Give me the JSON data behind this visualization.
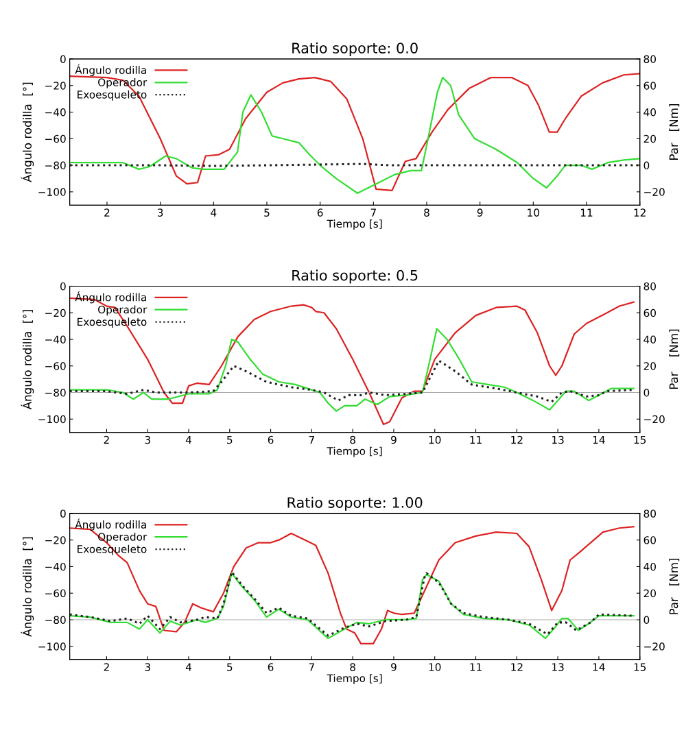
{
  "chart_data": [
    {
      "type": "line",
      "title": "Ratio soporte: 0.0",
      "xlabel": "Tiempo [s]",
      "ylabel": "Ángulo rodilla  [°]",
      "y2label": "Par   [Nm]",
      "xlim": [
        1.3,
        12
      ],
      "xticks": [
        2,
        3,
        4,
        5,
        6,
        7,
        8,
        9,
        10,
        11,
        12
      ],
      "ylim": [
        -110,
        0
      ],
      "yticks": [
        -100,
        -80,
        -60,
        -40,
        -20,
        0
      ],
      "y2lim": [
        -30,
        80
      ],
      "y2ticks": [
        -20,
        0,
        20,
        40,
        60,
        80
      ],
      "legend": "top left",
      "grid": false,
      "series": [
        {
          "name": "Ángulo rodilla",
          "color": "#dd2222",
          "line_style": "solid",
          "x": [
            1.3,
            2,
            2.3,
            2.6,
            3,
            3.3,
            3.5,
            3.7,
            3.85,
            4.1,
            4.3,
            4.6,
            5,
            5.3,
            5.6,
            5.9,
            6.2,
            6.5,
            6.8,
            7.05,
            7.35,
            7.6,
            7.8,
            8.1,
            8.4,
            8.8,
            9.2,
            9.6,
            9.9,
            10.1,
            10.3,
            10.45,
            10.6,
            10.9,
            11.3,
            11.7,
            12
          ],
          "values": [
            -13,
            -14,
            -16,
            -28,
            -60,
            -88,
            -94,
            -93,
            -73,
            -72,
            -68,
            -45,
            -25,
            -18,
            -15,
            -14,
            -17,
            -30,
            -60,
            -98,
            -99,
            -77,
            -75,
            -55,
            -38,
            -22,
            -14,
            -14,
            -20,
            -35,
            -55,
            -55,
            -45,
            -28,
            -18,
            -12,
            -11
          ]
        },
        {
          "name": "Operador",
          "color": "#33dd33",
          "line_style": "solid",
          "axis": "y2",
          "x": [
            1.3,
            2.3,
            2.6,
            2.8,
            3.1,
            3.3,
            3.6,
            3.8,
            4.2,
            4.45,
            4.55,
            4.7,
            4.9,
            5.1,
            5.3,
            5.6,
            5.8,
            6.0,
            6.3,
            6.7,
            7.0,
            7.4,
            7.7,
            7.9,
            8.0,
            8.2,
            8.3,
            8.45,
            8.6,
            8.9,
            9.3,
            9.7,
            10.0,
            10.25,
            10.45,
            10.6,
            10.9,
            11.1,
            11.4,
            11.7,
            12
          ],
          "values": [
            2,
            2,
            -3,
            -1,
            7,
            5,
            -2,
            -3,
            -3,
            10,
            40,
            53,
            40,
            22,
            20,
            17,
            8,
            0,
            -10,
            -21,
            -15,
            -7,
            -4,
            -4,
            15,
            55,
            66,
            60,
            38,
            20,
            12,
            2,
            -10,
            -17,
            -8,
            0,
            0,
            -3,
            2,
            4,
            5
          ]
        },
        {
          "name": "Exoesqueleto",
          "color": "#222222",
          "line_style": "dotted",
          "axis": "y2",
          "x": [
            1.3,
            3,
            4,
            5,
            6.8,
            7.3,
            9,
            11,
            12
          ],
          "values": [
            0,
            0,
            -0.5,
            0,
            1,
            0,
            0,
            0,
            0
          ]
        }
      ]
    },
    {
      "type": "line",
      "title": "Ratio soporte: 0.5",
      "xlabel": "Tiempo [s]",
      "ylabel": "Ángulo rodilla  [°]",
      "y2label": "Par    [Nm]",
      "xlim": [
        1.1,
        15
      ],
      "xticks": [
        2,
        3,
        4,
        5,
        6,
        7,
        8,
        9,
        10,
        11,
        12,
        13,
        14,
        15
      ],
      "ylim": [
        -110,
        0
      ],
      "yticks": [
        -100,
        -80,
        -60,
        -40,
        -20,
        0
      ],
      "y2lim": [
        -30,
        80
      ],
      "y2ticks": [
        -20,
        0,
        20,
        40,
        60,
        80
      ],
      "legend": "top left",
      "grid": false,
      "ref_lines": [
        {
          "axis": "y2",
          "value": 0,
          "color": "#aaaaaa"
        }
      ],
      "series": [
        {
          "name": "Ángulo rodilla",
          "color": "#dd2222",
          "line_style": "solid",
          "x": [
            1.1,
            1.7,
            2,
            2.2,
            2.5,
            3,
            3.4,
            3.6,
            3.85,
            4.0,
            4.2,
            4.5,
            4.8,
            5.2,
            5.6,
            6,
            6.5,
            6.8,
            7.0,
            7.1,
            7.3,
            7.6,
            8.0,
            8.4,
            8.75,
            8.9,
            9.2,
            9.5,
            9.7,
            10.0,
            10.5,
            11,
            11.5,
            12,
            12.2,
            12.5,
            12.8,
            12.95,
            13.1,
            13.4,
            13.7,
            14.2,
            14.5,
            14.85
          ],
          "values": [
            -9,
            -10,
            -15,
            -16,
            -30,
            -55,
            -80,
            -88,
            -88,
            -75,
            -73,
            -74,
            -60,
            -38,
            -25,
            -19,
            -15,
            -14,
            -16,
            -19,
            -20,
            -32,
            -55,
            -80,
            -104,
            -102,
            -84,
            -79,
            -79,
            -55,
            -35,
            -22,
            -16,
            -15,
            -18,
            -35,
            -60,
            -67,
            -60,
            -36,
            -28,
            -20,
            -15,
            -12
          ]
        },
        {
          "name": "Operador",
          "color": "#33dd33",
          "line_style": "solid",
          "axis": "y2",
          "x": [
            1.1,
            2,
            2.4,
            2.65,
            2.9,
            3.1,
            3.5,
            4.0,
            4.5,
            4.7,
            4.9,
            5.05,
            5.2,
            5.5,
            5.8,
            6.2,
            6.6,
            7.0,
            7.2,
            7.4,
            7.6,
            7.8,
            8.1,
            8.3,
            8.6,
            8.9,
            9.3,
            9.7,
            9.85,
            10.05,
            10.3,
            10.6,
            10.9,
            11.3,
            11.7,
            12.0,
            12.4,
            12.8,
            13.0,
            13.2,
            13.4,
            13.75,
            14.0,
            14.3,
            14.85
          ],
          "values": [
            2,
            2,
            0,
            -5,
            0,
            -5,
            -5,
            -1,
            -1,
            2,
            20,
            40,
            38,
            25,
            14,
            8,
            6,
            2,
            0,
            -8,
            -14,
            -10,
            -10,
            -5,
            -9,
            -3,
            -2,
            0,
            20,
            48,
            40,
            25,
            8,
            6,
            4,
            0,
            -6,
            -13,
            -6,
            1,
            1,
            -6,
            -2,
            3,
            3
          ]
        },
        {
          "name": "Exoesqueleto",
          "color": "#222222",
          "line_style": "dotted",
          "axis": "y2",
          "x": [
            1.1,
            2,
            2.5,
            2.9,
            3.2,
            4,
            4.6,
            4.8,
            5.1,
            5.4,
            5.9,
            6.5,
            7.0,
            7.3,
            7.65,
            7.9,
            8.2,
            8.4,
            8.8,
            9.3,
            9.7,
            9.9,
            10.1,
            10.5,
            10.9,
            11.5,
            12.0,
            12.5,
            12.85,
            13.1,
            13.3,
            13.7,
            14.0,
            14.2,
            14.85
          ],
          "values": [
            1,
            1,
            -1,
            2,
            0,
            0,
            1,
            8,
            20,
            16,
            8,
            4,
            2,
            0,
            -6,
            -2,
            -2,
            0,
            -2,
            -1,
            0,
            12,
            24,
            16,
            6,
            3,
            0,
            -3,
            -7,
            0,
            1,
            -3,
            -2,
            1,
            2
          ]
        }
      ]
    },
    {
      "type": "line",
      "title": "Ratio soporte: 1.00",
      "xlabel": "Tiempo [s]",
      "ylabel": "Ángulo rodilla  [°]",
      "y2label": "Par   [Nm]",
      "xlim": [
        1.1,
        15
      ],
      "xticks": [
        2,
        3,
        4,
        5,
        6,
        7,
        8,
        9,
        10,
        11,
        12,
        13,
        14,
        15
      ],
      "ylim": [
        -110,
        0
      ],
      "yticks": [
        -100,
        -80,
        -60,
        -40,
        -20,
        0
      ],
      "y2lim": [
        -30,
        80
      ],
      "y2ticks": [
        -20,
        0,
        20,
        40,
        60,
        80
      ],
      "legend": "top left",
      "grid": false,
      "ref_lines": [
        {
          "axis": "y2",
          "value": 0,
          "color": "#aaaaaa"
        }
      ],
      "series": [
        {
          "name": "Ángulo rodilla",
          "color": "#dd2222",
          "line_style": "solid",
          "x": [
            1.1,
            1.6,
            2.0,
            2.3,
            2.5,
            2.8,
            3.0,
            3.2,
            3.4,
            3.7,
            3.9,
            4.1,
            4.3,
            4.6,
            4.85,
            5.1,
            5.4,
            5.7,
            6.0,
            6.2,
            6.5,
            6.7,
            6.9,
            7.1,
            7.4,
            7.7,
            7.85,
            8.05,
            8.2,
            8.5,
            8.7,
            8.85,
            9.0,
            9.2,
            9.5,
            9.8,
            10.1,
            10.5,
            11,
            11.5,
            12,
            12.3,
            12.6,
            12.85,
            13.1,
            13.3,
            13.5,
            13.8,
            14.1,
            14.5,
            14.85
          ],
          "values": [
            -11,
            -12,
            -22,
            -32,
            -37,
            -58,
            -68,
            -70,
            -88,
            -89,
            -82,
            -68,
            -71,
            -74,
            -60,
            -40,
            -26,
            -22,
            -22,
            -20,
            -15,
            -18,
            -21,
            -24,
            -45,
            -75,
            -87,
            -90,
            -98,
            -98,
            -87,
            -73,
            -75,
            -76,
            -75,
            -55,
            -35,
            -22,
            -17,
            -14,
            -15,
            -25,
            -50,
            -73,
            -58,
            -35,
            -30,
            -22,
            -14,
            -11,
            -10
          ]
        },
        {
          "name": "Operador",
          "color": "#33dd33",
          "line_style": "solid",
          "axis": "y2",
          "x": [
            1.1,
            1.6,
            2.1,
            2.5,
            2.8,
            3.0,
            3.3,
            3.55,
            3.8,
            4.2,
            4.4,
            4.7,
            4.85,
            5.05,
            5.3,
            5.6,
            5.9,
            6.2,
            6.5,
            6.9,
            7.4,
            7.8,
            8.1,
            8.4,
            8.8,
            9.3,
            9.55,
            9.7,
            9.8,
            10.1,
            10.4,
            10.7,
            11.2,
            11.8,
            12.3,
            12.7,
            12.95,
            13.1,
            13.25,
            13.5,
            13.75,
            14.0,
            14.85
          ],
          "values": [
            3,
            2,
            -2,
            -2,
            -7,
            0,
            -10,
            -1,
            -4,
            0,
            -2,
            1,
            10,
            35,
            25,
            15,
            2,
            8,
            2,
            0,
            -14,
            -7,
            -2,
            -3,
            0,
            0,
            1,
            30,
            34,
            29,
            12,
            4,
            1,
            0,
            -4,
            -14,
            -5,
            1,
            1,
            -8,
            -3,
            3,
            3
          ]
        },
        {
          "name": "Exoesqueleto",
          "color": "#222222",
          "line_style": "dotted",
          "axis": "y2",
          "x": [
            1.1,
            1.6,
            2.1,
            2.5,
            2.8,
            3.0,
            3.3,
            3.55,
            3.8,
            4.2,
            4.4,
            4.7,
            4.85,
            5.05,
            5.3,
            5.6,
            5.9,
            6.2,
            6.5,
            6.9,
            7.4,
            7.8,
            8.1,
            8.4,
            8.8,
            9.3,
            9.55,
            9.75,
            9.8,
            10.1,
            10.4,
            10.7,
            11.2,
            11.8,
            12.3,
            12.75,
            13.0,
            13.2,
            13.45,
            13.8,
            14.0,
            14.85
          ],
          "values": [
            4,
            2,
            -1,
            1,
            -3,
            3,
            -7,
            2,
            -2,
            0,
            2,
            1,
            12,
            36,
            26,
            16,
            5,
            9,
            3,
            1,
            -12,
            -6,
            -3,
            -5,
            -1,
            0,
            2,
            32,
            35,
            28,
            12,
            5,
            2,
            0,
            -3,
            -11,
            -2,
            -2,
            -8,
            -2,
            4,
            3
          ]
        }
      ]
    }
  ]
}
